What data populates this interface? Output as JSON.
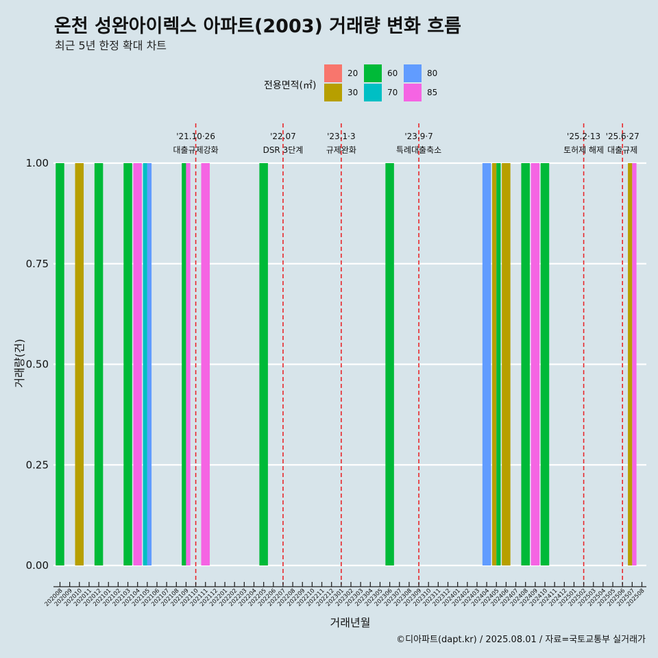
{
  "header": {
    "title": "온천 성완아이렉스 아파트(2003) 거래량 변화 흐름",
    "subtitle": "최근 5년 한정 확대 차트"
  },
  "legend": {
    "title": "전용면적(㎡)",
    "items": [
      {
        "label": "20",
        "color": "#f8766d"
      },
      {
        "label": "30",
        "color": "#b79f00"
      },
      {
        "label": "60",
        "color": "#00ba38"
      },
      {
        "label": "70",
        "color": "#00bfc4"
      },
      {
        "label": "80",
        "color": "#619cff"
      },
      {
        "label": "85",
        "color": "#f564e3"
      }
    ]
  },
  "caption": "©디아파트(dapt.kr) / 2025.08.01 / 자료=국토교통부 실거래가",
  "chart_data": {
    "type": "bar",
    "xlabel": "거래년월",
    "ylabel": "거래량(건)",
    "ylim": [
      0,
      1
    ],
    "yticks": [
      "0.00",
      "0.25",
      "0.50",
      "0.75",
      "1.00"
    ],
    "categories": [
      "202008",
      "202009",
      "202010",
      "202011",
      "202012",
      "202101",
      "202102",
      "202103",
      "202104",
      "202105",
      "202106",
      "202107",
      "202108",
      "202109",
      "202110",
      "202111",
      "202112",
      "202201",
      "202202",
      "202203",
      "202204",
      "202205",
      "202206",
      "202207",
      "202208",
      "202209",
      "202210",
      "202211",
      "202212",
      "202301",
      "202302",
      "202303",
      "202304",
      "202305",
      "202306",
      "202307",
      "202308",
      "202309",
      "202310",
      "202311",
      "202312",
      "202401",
      "202402",
      "202403",
      "202404",
      "202405",
      "202406",
      "202407",
      "202408",
      "202409",
      "202410",
      "202411",
      "202412",
      "202501",
      "202502",
      "202503",
      "202504",
      "202505",
      "202506",
      "202507",
      "202508"
    ],
    "bars": [
      {
        "month": "202008",
        "area": "60",
        "value": 1
      },
      {
        "month": "202010",
        "area": "30",
        "value": 1
      },
      {
        "month": "202012",
        "area": "60",
        "value": 1
      },
      {
        "month": "202103",
        "area": "60",
        "value": 1
      },
      {
        "month": "202104",
        "area": "85",
        "value": 1
      },
      {
        "month": "202105",
        "area": "70",
        "value": 1
      },
      {
        "month": "202105",
        "area": "80",
        "value": 1
      },
      {
        "month": "202109",
        "area": "60",
        "value": 1
      },
      {
        "month": "202109",
        "area": "85",
        "value": 1
      },
      {
        "month": "202111",
        "area": "85",
        "value": 1
      },
      {
        "month": "202205",
        "area": "60",
        "value": 1
      },
      {
        "month": "202306",
        "area": "60",
        "value": 1
      },
      {
        "month": "202404",
        "area": "80",
        "value": 1
      },
      {
        "month": "202405",
        "area": "30",
        "value": 1
      },
      {
        "month": "202405",
        "area": "60",
        "value": 1
      },
      {
        "month": "202406",
        "area": "30",
        "value": 1
      },
      {
        "month": "202408",
        "area": "60",
        "value": 1
      },
      {
        "month": "202409",
        "area": "85",
        "value": 1
      },
      {
        "month": "202410",
        "area": "60",
        "value": 1
      },
      {
        "month": "202507",
        "area": "30",
        "value": 1
      },
      {
        "month": "202507",
        "area": "85",
        "value": 1
      }
    ],
    "events": [
      {
        "month": "202110",
        "date": "'21.10·26",
        "label": "대출규제강화"
      },
      {
        "month": "202207",
        "date": "'22.07",
        "label": "DSR 3단계"
      },
      {
        "month": "202301",
        "date": "'23.1·3",
        "label": "규제완화"
      },
      {
        "month": "202309",
        "date": "'23.9·7",
        "label": "특례대출축소"
      },
      {
        "month": "202502",
        "date": "'25.2·13",
        "label": "토허제 해제"
      },
      {
        "month": "202506",
        "date": "'25.6·27",
        "label": "대출규제"
      }
    ]
  }
}
